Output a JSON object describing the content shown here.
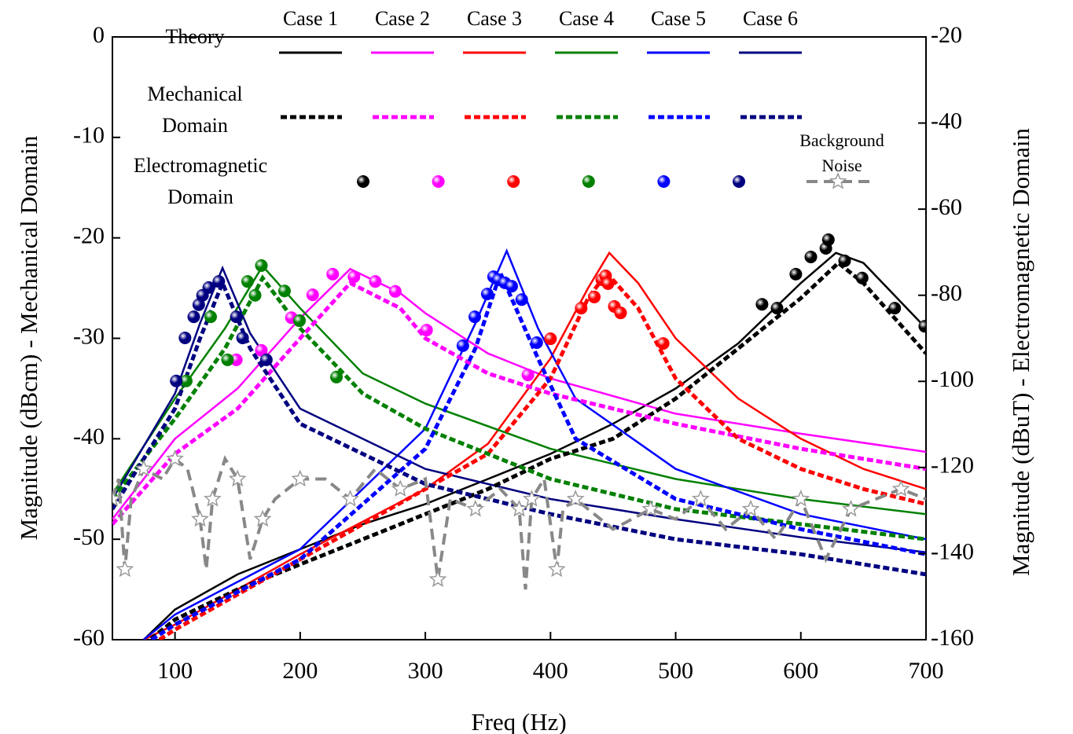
{
  "chart_data": {
    "type": "line",
    "x_label": "Freq (Hz)",
    "y_label": "Magnitude (dBcm) - Mechanical Domain",
    "y2_label": "Magnitude (dBuT) - Electromagnetic Domain",
    "xlim": [
      50,
      700
    ],
    "xticks": [
      100,
      200,
      300,
      400,
      500,
      600,
      700
    ],
    "ylim": [
      -60,
      0
    ],
    "yticks": [
      0,
      -10,
      -20,
      -30,
      -40,
      -50,
      -60
    ],
    "y2lim": [
      -160,
      -20
    ],
    "y2ticks": [
      -20,
      -40,
      -60,
      -80,
      -100,
      -120,
      -140,
      -160
    ],
    "legend_rows": [
      "Theory",
      "Mechanical Domain",
      "Electromagnetic Domain"
    ],
    "series": [
      {
        "name": "Case 1",
        "style": "solid",
        "color": "#000000",
        "x": [
          75,
          100,
          150,
          200,
          250,
          300,
          350,
          400,
          450,
          500,
          550,
          600,
          628,
          650,
          700
        ],
        "values": [
          -60,
          -57,
          -53.5,
          -51,
          -48.5,
          -46.5,
          -44,
          -41.5,
          -38.5,
          -35,
          -30.5,
          -24.5,
          -21.5,
          -22.5,
          -29
        ]
      },
      {
        "name": "Case 2",
        "style": "solid",
        "color": "#ff00ff",
        "x": [
          50,
          100,
          150,
          200,
          240,
          280,
          300,
          350,
          400,
          500,
          600,
          700
        ],
        "values": [
          -48,
          -40,
          -35,
          -28,
          -23.1,
          -25.5,
          -27.5,
          -31.5,
          -34,
          -37.5,
          -39.5,
          -41.3
        ]
      },
      {
        "name": "Case 3",
        "style": "solid",
        "color": "#ff0000",
        "x": [
          75,
          100,
          200,
          300,
          350,
          400,
          430,
          447,
          470,
          500,
          550,
          600,
          650,
          700
        ],
        "values": [
          -60,
          -58.5,
          -51.5,
          -45,
          -40.5,
          -32,
          -25,
          -21.5,
          -24.5,
          -30,
          -36,
          -40,
          -43,
          -45
        ]
      },
      {
        "name": "Case 4",
        "style": "solid",
        "color": "#008000",
        "x": [
          50,
          100,
          140,
          170,
          200,
          250,
          300,
          400,
          500,
          600,
          700
        ],
        "values": [
          -45.5,
          -36,
          -29,
          -22.8,
          -27,
          -33.5,
          -36.5,
          -41,
          -44,
          -46,
          -47.5
        ]
      },
      {
        "name": "Case 5",
        "style": "solid",
        "color": "#0000ff",
        "x": [
          75,
          100,
          200,
          300,
          340,
          365,
          390,
          420,
          500,
          600,
          700
        ],
        "values": [
          -60,
          -57.5,
          -51,
          -39,
          -28.5,
          -21.3,
          -29,
          -36,
          -43,
          -47.5,
          -50
        ]
      },
      {
        "name": "Case 6",
        "style": "solid",
        "color": "#000080",
        "x": [
          50,
          100,
          120,
          138,
          160,
          200,
          300,
          400,
          500,
          600,
          700
        ],
        "values": [
          -46,
          -35.5,
          -28.5,
          -23,
          -29.5,
          -37,
          -43,
          -46,
          -48,
          -49.8,
          -51.3
        ]
      },
      {
        "name": "Case 1",
        "style": "dashed",
        "color": "#000000",
        "x": [
          75,
          100,
          150,
          200,
          250,
          300,
          350,
          400,
          450,
          500,
          550,
          600,
          630,
          650,
          700
        ],
        "values": [
          -60.5,
          -58,
          -55,
          -52.5,
          -50,
          -47.5,
          -45,
          -42,
          -40,
          -36,
          -31,
          -26,
          -22.5,
          -24.5,
          -31.5
        ]
      },
      {
        "name": "Case 2",
        "style": "dashed",
        "color": "#ff00ff",
        "x": [
          50,
          100,
          150,
          200,
          240,
          280,
          300,
          350,
          400,
          500,
          600,
          700
        ],
        "values": [
          -48.5,
          -41.5,
          -37,
          -30,
          -24.5,
          -27,
          -30,
          -33.5,
          -35.5,
          -38.5,
          -41,
          -43
        ]
      },
      {
        "name": "Case 3",
        "style": "dashed",
        "color": "#ff0000",
        "x": [
          75,
          100,
          200,
          300,
          350,
          400,
          430,
          445,
          470,
          500,
          550,
          600,
          650,
          700
        ],
        "values": [
          -61,
          -59,
          -52,
          -45,
          -41.5,
          -34,
          -26,
          -23.5,
          -27,
          -34,
          -40,
          -43,
          -45,
          -46.5
        ]
      },
      {
        "name": "Case 4",
        "style": "dashed",
        "color": "#008000",
        "x": [
          50,
          100,
          140,
          170,
          200,
          250,
          300,
          400,
          500,
          600,
          700
        ],
        "values": [
          -46,
          -38,
          -31,
          -24,
          -29,
          -35.5,
          -39,
          -44,
          -47,
          -48.5,
          -50
        ]
      },
      {
        "name": "Case 5",
        "style": "dashed",
        "color": "#0000ff",
        "x": [
          75,
          100,
          200,
          300,
          340,
          360,
          390,
          420,
          500,
          600,
          700
        ],
        "values": [
          -60.5,
          -58.5,
          -52,
          -41,
          -31,
          -23.5,
          -32,
          -40,
          -46,
          -49,
          -51.5
        ]
      },
      {
        "name": "Case 6",
        "style": "dashed",
        "color": "#000080",
        "x": [
          50,
          100,
          120,
          138,
          160,
          200,
          300,
          400,
          500,
          600,
          700
        ],
        "values": [
          -47,
          -37,
          -30,
          -24.5,
          -31,
          -38.5,
          -44.5,
          -47.5,
          -50,
          -51.5,
          -53.5
        ]
      },
      {
        "name": "Case 1",
        "style": "dots",
        "axis": "y2",
        "color": "#000000",
        "x": [
          569,
          581,
          596,
          608,
          620,
          622,
          635,
          649,
          675,
          699
        ],
        "values": [
          -82.1,
          -83,
          -75.1,
          -71.1,
          -69.1,
          -67.1,
          -72,
          -76,
          -83,
          -87.2
        ]
      },
      {
        "name": "Case 2",
        "style": "dots",
        "axis": "y2",
        "color": "#ff00ff",
        "x": [
          149,
          169,
          193,
          210,
          226,
          243,
          260,
          276,
          301,
          382
        ],
        "values": [
          -95,
          -92.8,
          -85.2,
          -79.9,
          -75.1,
          -75.7,
          -76.8,
          -79.1,
          -88.1,
          -98.5
        ]
      },
      {
        "name": "Case 3",
        "style": "dots",
        "axis": "y2",
        "color": "#ff0000",
        "x": [
          400,
          424.5,
          435,
          441,
          444,
          446,
          451,
          456,
          490
        ],
        "values": [
          -90.1,
          -83,
          -80.4,
          -76.4,
          -75.5,
          -77.3,
          -82.6,
          -84.1,
          -91.2
        ]
      },
      {
        "name": "Case 4",
        "style": "dots",
        "axis": "y2",
        "color": "#008000",
        "x": [
          109,
          128.5,
          142,
          158,
          164,
          169,
          187.5,
          199.5,
          229
        ],
        "values": [
          -99.9,
          -85,
          -95,
          -76.8,
          -80,
          -73.1,
          -79,
          -85.9,
          -99
        ]
      },
      {
        "name": "Case 5",
        "style": "dots",
        "axis": "y2",
        "color": "#0000ff",
        "x": [
          330,
          339.5,
          349.5,
          354.5,
          358.5,
          363.5,
          369,
          377,
          389
        ],
        "values": [
          -91.7,
          -85,
          -79.7,
          -75.7,
          -76.4,
          -77.1,
          -77.9,
          -81,
          -91
        ]
      },
      {
        "name": "Case 6",
        "style": "dots",
        "axis": "y2",
        "color": "#000080",
        "x": [
          101,
          108,
          115,
          119,
          122,
          127,
          135,
          149,
          154,
          173
        ],
        "values": [
          -99.9,
          -89.9,
          -85,
          -82.2,
          -80,
          -78.2,
          -76.8,
          -85,
          -89.9,
          -95
        ]
      },
      {
        "name": "Background Noise",
        "style": "noise",
        "color": "#888888",
        "x": [
          50,
          55,
          60,
          65,
          75,
          90,
          100,
          110,
          120,
          125,
          130,
          140,
          150,
          160,
          170,
          180,
          200,
          220,
          240,
          260,
          280,
          300,
          310,
          320,
          340,
          360,
          375,
          380,
          385,
          395,
          405,
          410,
          420,
          450,
          480,
          500,
          520,
          540,
          560,
          580,
          600,
          620,
          640,
          660,
          680,
          700
        ],
        "values": [
          -46,
          -44,
          -53,
          -46,
          -43,
          -44,
          -42,
          -43,
          -48,
          -53,
          -46,
          -42,
          -44,
          -52,
          -48,
          -46,
          -44,
          -44,
          -46,
          -43,
          -45,
          -44,
          -54,
          -46,
          -47,
          -45,
          -47,
          -55,
          -46,
          -44,
          -53,
          -47,
          -46,
          -49,
          -47,
          -48,
          -46,
          -49,
          -47,
          -50,
          -46,
          -52,
          -47,
          -46,
          -45,
          -46
        ]
      }
    ]
  }
}
